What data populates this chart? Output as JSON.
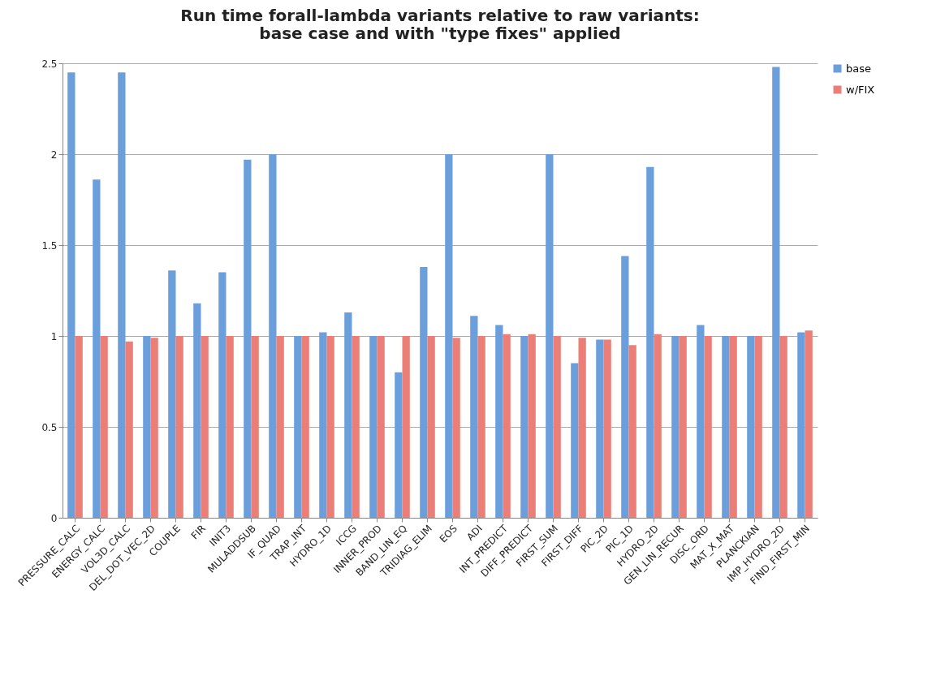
{
  "chart_data": {
    "type": "bar",
    "title": "Run time forall-lambda variants relative to raw variants:\nbase case and with \"type fixes\" applied",
    "categories": [
      "PRESSURE_CALC",
      "ENERGY_CALC",
      "VOL3D_CALC",
      "DEL_DOT_VEC_2D",
      "COUPLE",
      "FIR",
      "INIT3",
      "MULADDSUB",
      "IF_QUAD",
      "TRAP_INT",
      "HYDRO_1D",
      "ICCG",
      "INNER_PROD",
      "BAND_LIN_EQ",
      "TRIDIAG_ELIM",
      "EOS",
      "ADI",
      "INT_PREDICT",
      "DIFF_PREDICT",
      "FIRST_SUM",
      "FIRST_DIFF",
      "PIC_2D",
      "PIC_1D",
      "HYDRO_2D",
      "GEN_LIN_RECUR",
      "DISC_ORD",
      "MAT_X_MAT",
      "PLANCKIAN",
      "IMP_HYDRO_2D",
      "FIND_FIRST_MIN"
    ],
    "series": [
      {
        "name": "base",
        "color": "#6a9fdc",
        "values": [
          2.45,
          1.86,
          2.45,
          1.0,
          1.36,
          1.18,
          1.35,
          1.97,
          2.0,
          1.0,
          1.02,
          1.13,
          1.0,
          0.8,
          1.38,
          2.0,
          1.11,
          1.06,
          1.0,
          2.0,
          0.85,
          0.98,
          1.44,
          1.93,
          1.0,
          1.06,
          1.0,
          1.0,
          2.48,
          1.02
        ]
      },
      {
        "name": "w/FIX",
        "color": "#eb7f78",
        "values": [
          1.0,
          1.0,
          0.97,
          0.99,
          1.0,
          1.0,
          1.0,
          1.0,
          1.0,
          1.0,
          1.0,
          1.0,
          1.0,
          1.0,
          1.0,
          0.99,
          1.0,
          1.01,
          1.01,
          1.0,
          0.99,
          0.98,
          0.95,
          1.01,
          1.0,
          1.0,
          1.0,
          1.0,
          1.0,
          1.03
        ]
      }
    ],
    "ylim": [
      0,
      2.5
    ],
    "yticks": [
      0,
      0.5,
      1,
      1.5,
      2,
      2.5
    ],
    "grid": "y",
    "legend": "right"
  }
}
